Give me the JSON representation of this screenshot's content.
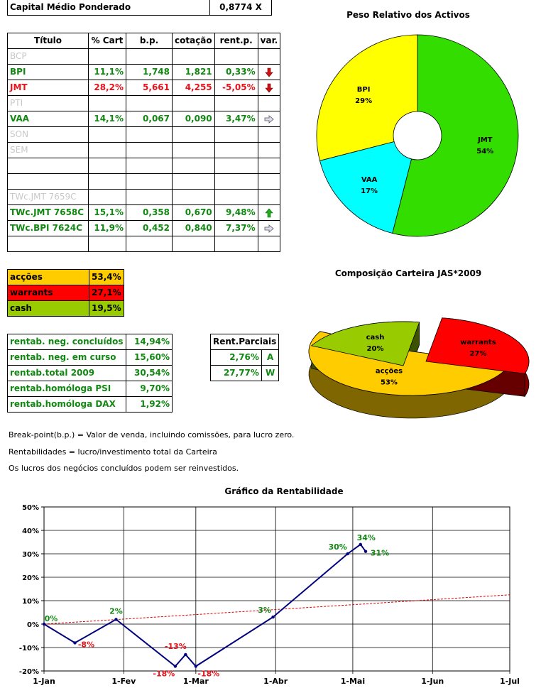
{
  "capital": {
    "label": "Capital Médio Ponderado",
    "value": "0,8774 X"
  },
  "holdings": {
    "headers": [
      "Título",
      "% Cart",
      "b.p.",
      "cotação",
      "rent.p.",
      "var."
    ],
    "rows": [
      {
        "title": "BCP",
        "pct": "",
        "bp": "",
        "quote": "",
        "rent": "",
        "var": "",
        "style": "grey"
      },
      {
        "title": "BPI",
        "pct": "11,1%",
        "bp": "1,748",
        "quote": "1,821",
        "rent": "0,33%",
        "var": "down",
        "style": "green"
      },
      {
        "title": "JMT",
        "pct": "28,2%",
        "bp": "5,661",
        "quote": "4,255",
        "rent": "-5,05%",
        "var": "down",
        "style": "red"
      },
      {
        "title": "PTI",
        "pct": "",
        "bp": "",
        "quote": "",
        "rent": "",
        "var": "",
        "style": "grey"
      },
      {
        "title": "VAA",
        "pct": "14,1%",
        "bp": "0,067",
        "quote": "0,090",
        "rent": "3,47%",
        "var": "right",
        "style": "green"
      },
      {
        "title": "SON",
        "pct": "",
        "bp": "",
        "quote": "",
        "rent": "",
        "var": "",
        "style": "grey"
      },
      {
        "title": "SEM",
        "pct": "",
        "bp": "",
        "quote": "",
        "rent": "",
        "var": "",
        "style": "grey"
      },
      {
        "title": "",
        "pct": "",
        "bp": "",
        "quote": "",
        "rent": "",
        "var": "",
        "style": "grey"
      },
      {
        "title": "",
        "pct": "",
        "bp": "",
        "quote": "",
        "rent": "",
        "var": "",
        "style": "grey"
      },
      {
        "title": "TWc.JMT 7659C",
        "pct": "",
        "bp": "",
        "quote": "",
        "rent": "",
        "var": "",
        "style": "grey"
      },
      {
        "title": "TWc.JMT 7658C",
        "pct": "15,1%",
        "bp": "0,358",
        "quote": "0,670",
        "rent": "9,48%",
        "var": "up",
        "style": "green"
      },
      {
        "title": "TWc.BPI 7624C",
        "pct": "11,9%",
        "bp": "0,452",
        "quote": "0,840",
        "rent": "7,37%",
        "var": "right",
        "style": "green"
      },
      {
        "title": "",
        "pct": "",
        "bp": "",
        "quote": "",
        "rent": "",
        "var": "",
        "style": "grey"
      }
    ]
  },
  "allocation": [
    {
      "label": "acções",
      "value": "53,4%",
      "color": "#ffcc00"
    },
    {
      "label": "warrants",
      "value": "27,1%",
      "color": "#ff0000"
    },
    {
      "label": "cash",
      "value": "19,5%",
      "color": "#99cc00"
    }
  ],
  "returns": [
    {
      "label": "rentab. neg. concluídos",
      "value": "14,94%"
    },
    {
      "label": "rentab. neg. em curso",
      "value": "15,60%"
    },
    {
      "label": "rentab.total 2009",
      "value": "30,54%"
    },
    {
      "label": "rentab.homóloga PSI",
      "value": "9,70%"
    },
    {
      "label": "rentab.homóloga DAX",
      "value": "1,92%"
    }
  ],
  "partials": {
    "header": "Rent.Parciais",
    "rows": [
      {
        "value": "2,76%",
        "code": "A"
      },
      {
        "value": "27,77%",
        "code": "W"
      }
    ]
  },
  "notes": [
    "Break-point(b.p.) = Valor de venda, incluindo comissões, para lucro zero.",
    "Rentabilidades = lucro/investimento total da Carteira",
    "Os lucros dos negócios concluídos podem ser reinvestidos."
  ],
  "chart_data": [
    {
      "type": "pie",
      "title": "Peso Relativo dos Activos",
      "style": "donut",
      "slices": [
        {
          "label": "JMT",
          "value": 54,
          "value_label": "54%",
          "color": "#33dd00"
        },
        {
          "label": "VAA",
          "value": 17,
          "value_label": "17%",
          "color": "#00ffff"
        },
        {
          "label": "BPI",
          "value": 29,
          "value_label": "29%",
          "color": "#ffff00"
        }
      ]
    },
    {
      "type": "pie",
      "title": "Composição Carteira JAS*2009",
      "style": "3d-exploded",
      "slices": [
        {
          "label": "acções",
          "value": 53,
          "value_label": "53%",
          "color": "#ffcc00"
        },
        {
          "label": "warrants",
          "value": 27,
          "value_label": "27%",
          "color": "#ff0000"
        },
        {
          "label": "cash",
          "value": 20,
          "value_label": "20%",
          "color": "#99cc00"
        }
      ]
    },
    {
      "type": "line",
      "title": "Gráfico da Rentabilidade",
      "x_ticks": [
        "1-Jan",
        "1-Fev",
        "1-Mar",
        "1-Abr",
        "1-Mai",
        "1-Jun",
        "1-Jul"
      ],
      "y_ticks": [
        "-20%",
        "-10%",
        "0%",
        "10%",
        "20%",
        "30%",
        "40%",
        "50%"
      ],
      "ylim": [
        -20,
        50
      ],
      "grid": true,
      "series": [
        {
          "color": "#00007f",
          "points": [
            {
              "x": "2009-01-01",
              "y": 0,
              "label": "0%"
            },
            {
              "x": "2009-01-13",
              "y": -8,
              "label": "-8%"
            },
            {
              "x": "2009-01-29",
              "y": 2,
              "label": "2%"
            },
            {
              "x": "2009-02-21",
              "y": -18,
              "label": "-18%"
            },
            {
              "x": "2009-02-25",
              "y": -13,
              "label": "-13%"
            },
            {
              "x": "2009-03-01",
              "y": -18,
              "label": "-18%"
            },
            {
              "x": "2009-03-31",
              "y": 3,
              "label": "3%"
            },
            {
              "x": "2009-04-29",
              "y": 30,
              "label": "30%"
            },
            {
              "x": "2009-05-04",
              "y": 34,
              "label": "34%"
            },
            {
              "x": "2009-05-06",
              "y": 31,
              "label": "31%"
            }
          ]
        },
        {
          "style": "dashed",
          "color": "#dd0000",
          "points": [
            {
              "x": "2009-01-01",
              "y": 0
            },
            {
              "x": "2009-07-01",
              "y": 12.5
            }
          ]
        }
      ]
    }
  ]
}
